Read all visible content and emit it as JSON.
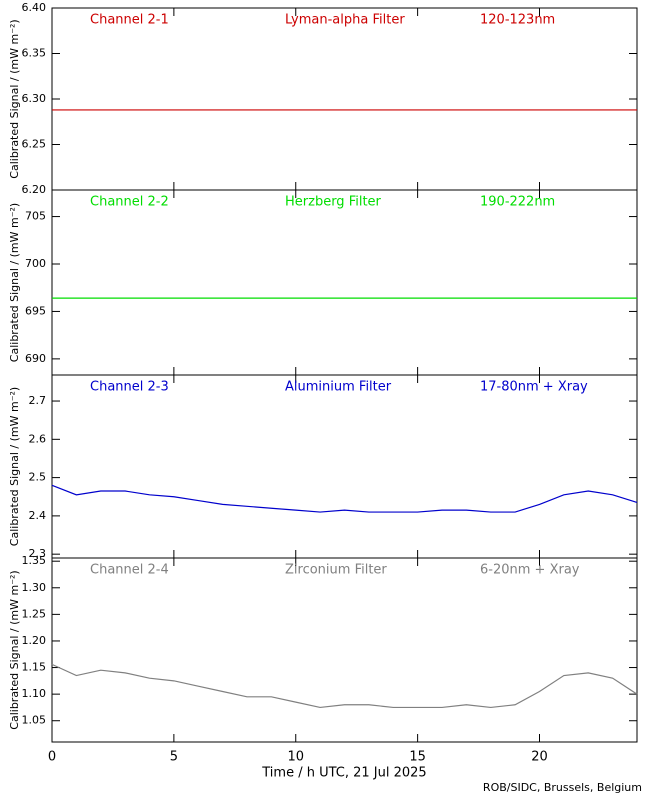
{
  "chart_data": [
    {
      "type": "line",
      "annotations": [
        "Channel 2-1",
        "Lyman-alpha Filter",
        "120-123nm"
      ],
      "ylabel": "Calibrated Signal / (mW m⁻²)",
      "color": "#cc0000",
      "x": [
        0,
        1,
        2,
        3,
        4,
        5,
        6,
        7,
        8,
        9,
        10,
        11,
        12,
        13,
        14,
        15,
        16,
        17,
        18,
        19,
        20,
        21,
        22,
        23,
        24
      ],
      "values": [
        6.288,
        6.288,
        6.288,
        6.288,
        6.288,
        6.288,
        6.288,
        6.288,
        6.288,
        6.288,
        6.288,
        6.288,
        6.288,
        6.288,
        6.288,
        6.288,
        6.288,
        6.288,
        6.288,
        6.288,
        6.288,
        6.288,
        6.288,
        6.288,
        6.288
      ],
      "xlim": [
        0,
        24
      ],
      "xticks": [
        0,
        5,
        10,
        15,
        20
      ],
      "ylim": [
        6.2,
        6.4
      ],
      "yticks": [
        {
          "value": 6.2,
          "label": "6.20"
        },
        {
          "value": 6.25,
          "label": "6.25"
        },
        {
          "value": 6.3,
          "label": "6.30"
        },
        {
          "value": 6.35,
          "label": "6.35"
        },
        {
          "value": 6.4,
          "label": "6.40"
        }
      ]
    },
    {
      "type": "line",
      "annotations": [
        "Channel 2-2",
        "Herzberg Filter",
        "190-222nm"
      ],
      "ylabel": "Calibrated Signal / (mW m⁻²)",
      "color": "#00dd00",
      "x": [
        0,
        1,
        2,
        3,
        4,
        5,
        6,
        7,
        8,
        9,
        10,
        11,
        12,
        13,
        14,
        15,
        16,
        17,
        18,
        19,
        20,
        21,
        22,
        23,
        24
      ],
      "values": [
        696.4,
        696.4,
        696.4,
        696.4,
        696.4,
        696.4,
        696.4,
        696.4,
        696.4,
        696.4,
        696.4,
        696.4,
        696.4,
        696.4,
        696.4,
        696.4,
        696.4,
        696.4,
        696.4,
        696.4,
        696.4,
        696.4,
        696.4,
        696.4,
        696.4
      ],
      "xlim": [
        0,
        24
      ],
      "xticks": [
        0,
        5,
        10,
        15,
        20
      ],
      "ylim": [
        688.3,
        707.8
      ],
      "yticks": [
        690,
        695,
        700,
        705
      ]
    },
    {
      "type": "line",
      "annotations": [
        "Channel 2-3",
        "Aluminium Filter",
        "17-80nm + Xray"
      ],
      "ylabel": "Calibrated Signal / (mW m⁻²)",
      "color": "#0000cc",
      "x": [
        0,
        1,
        2,
        3,
        4,
        5,
        6,
        7,
        8,
        9,
        10,
        11,
        12,
        13,
        14,
        15,
        16,
        17,
        18,
        19,
        20,
        21,
        22,
        23,
        24
      ],
      "values": [
        2.48,
        2.455,
        2.465,
        2.465,
        2.455,
        2.45,
        2.44,
        2.43,
        2.425,
        2.42,
        2.415,
        2.41,
        2.415,
        2.41,
        2.41,
        2.41,
        2.415,
        2.415,
        2.41,
        2.41,
        2.43,
        2.455,
        2.465,
        2.455,
        2.435
      ],
      "xlim": [
        0,
        24
      ],
      "xticks": [
        0,
        5,
        10,
        15,
        20
      ],
      "ylim": [
        2.29,
        2.768
      ],
      "yticks": [
        2.3,
        2.4,
        2.5,
        2.6,
        2.7
      ]
    },
    {
      "type": "line",
      "annotations": [
        "Channel 2-4",
        "Zirconium Filter",
        "6-20nm + Xray"
      ],
      "ylabel": "Calibrated Signal / (mW m⁻²)",
      "xlabel": "Time / h UTC, 21 Jul 2025",
      "color": "#808080",
      "x": [
        0,
        1,
        2,
        3,
        4,
        5,
        6,
        7,
        8,
        9,
        10,
        11,
        12,
        13,
        14,
        15,
        16,
        17,
        18,
        19,
        20,
        21,
        22,
        23,
        24
      ],
      "values": [
        1.156,
        1.135,
        1.145,
        1.14,
        1.13,
        1.125,
        1.115,
        1.105,
        1.095,
        1.095,
        1.085,
        1.075,
        1.08,
        1.08,
        1.075,
        1.075,
        1.075,
        1.08,
        1.075,
        1.08,
        1.105,
        1.135,
        1.14,
        1.13,
        1.1
      ],
      "xlim": [
        0,
        24
      ],
      "xticks": [
        0,
        5,
        10,
        15,
        20
      ],
      "ylim": [
        1.01,
        1.356
      ],
      "yticks": [
        {
          "value": 1.05,
          "label": "1.05"
        },
        {
          "value": 1.1,
          "label": "1.10"
        },
        {
          "value": 1.15,
          "label": "1.15"
        },
        {
          "value": 1.2,
          "label": "1.20"
        },
        {
          "value": 1.25,
          "label": "1.25"
        },
        {
          "value": 1.3,
          "label": "1.30"
        },
        {
          "value": 1.35,
          "label": "1.35"
        }
      ]
    }
  ],
  "footer": "ROB/SIDC, Brussels, Belgium"
}
